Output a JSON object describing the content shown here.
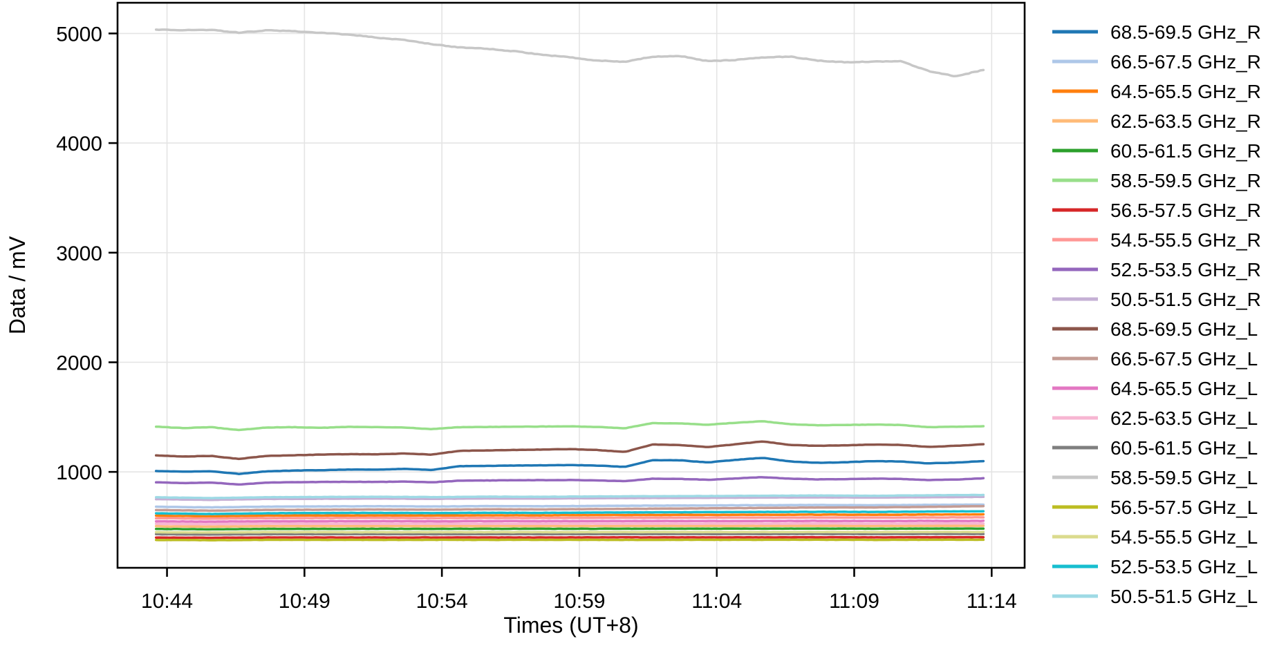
{
  "figure": {
    "background": "#ffffff",
    "grid_color": "#e4e4e4",
    "spine_color": "#000000",
    "text_color": "#000000"
  },
  "chart_data": {
    "type": "line",
    "title": "",
    "xlabel": "Times (UT+8)",
    "ylabel": "Data / mV",
    "grid": true,
    "legend_position": "right",
    "x_tick_labels": [
      "10:44",
      "10:49",
      "10:54",
      "10:59",
      "11:04",
      "11:09",
      "11:14"
    ],
    "x_tick_minutes": [
      0.4,
      5.4,
      10.4,
      15.4,
      20.4,
      25.4,
      30.4
    ],
    "xlim_minutes": [
      -1.4,
      31.6
    ],
    "y_ticks": [
      1000,
      2000,
      3000,
      4000,
      5000
    ],
    "ylim": [
      125,
      5280
    ],
    "data_minutes_range": [
      0,
      30.1
    ],
    "series": [
      {
        "label": "68.5-69.5 GHz_R",
        "color": "#1f77b4",
        "values": [
          1008,
          1002,
          1006,
          982,
          1005,
          1012,
          1016,
          1022,
          1020,
          1028,
          1018,
          1052,
          1055,
          1058,
          1060,
          1062,
          1058,
          1046,
          1107,
          1106,
          1086,
          1110,
          1128,
          1095,
          1083,
          1088,
          1098,
          1095,
          1078,
          1085,
          1098
        ]
      },
      {
        "label": "66.5-67.5 GHz_R",
        "color": "#aec7e8",
        "values": [
          682,
          676,
          683,
          685,
          687,
          684,
          688,
          687,
          690,
          692,
          694,
          696,
          698,
          696,
          699,
          702
        ]
      },
      {
        "label": "64.5-65.5 GHz_R",
        "color": "#ff7f0e",
        "values": [
          600,
          595,
          601,
          602,
          603,
          602,
          604,
          604,
          606,
          607,
          608,
          609,
          610,
          609,
          611,
          612
        ]
      },
      {
        "label": "62.5-63.5 GHz_R",
        "color": "#ffbb78",
        "values": [
          504,
          501,
          505,
          505,
          506,
          505,
          506,
          506,
          506,
          507,
          507,
          507,
          508,
          507,
          508,
          508
        ]
      },
      {
        "label": "60.5-61.5 GHz_R",
        "color": "#2ca02c",
        "values": [
          479,
          476,
          480,
          480,
          481,
          480,
          481,
          481,
          481,
          482,
          482,
          482,
          483,
          482,
          483,
          483
        ]
      },
      {
        "label": "58.5-59.5 GHz_R",
        "color": "#98df8a",
        "values": [
          1412,
          1400,
          1408,
          1382,
          1405,
          1408,
          1402,
          1412,
          1408,
          1405,
          1390,
          1408,
          1410,
          1412,
          1414,
          1416,
          1410,
          1398,
          1445,
          1442,
          1430,
          1448,
          1462,
          1435,
          1425,
          1428,
          1432,
          1428,
          1408,
          1412,
          1416
        ]
      },
      {
        "label": "56.5-57.5 GHz_R",
        "color": "#d62728",
        "values": [
          401,
          399,
          402,
          402,
          402,
          402,
          402,
          402,
          403,
          403,
          403,
          403,
          404,
          403,
          404,
          404
        ]
      },
      {
        "label": "54.5-55.5 GHz_R",
        "color": "#ff9896",
        "values": [
          577,
          573,
          578,
          579,
          580,
          578,
          580,
          580,
          581,
          582,
          583,
          583,
          584,
          583,
          584,
          585
        ]
      },
      {
        "label": "52.5-53.5 GHz_R",
        "color": "#9467bd",
        "values": [
          905,
          898,
          903,
          885,
          902,
          906,
          908,
          910,
          908,
          912,
          905,
          920,
          922,
          924,
          925,
          926,
          922,
          915,
          938,
          936,
          928,
          940,
          952,
          938,
          932,
          934,
          938,
          936,
          926,
          930,
          942
        ]
      },
      {
        "label": "50.5-51.5 GHz_R",
        "color": "#c5b0d5",
        "values": [
          752,
          745,
          753,
          755,
          757,
          754,
          758,
          757,
          760,
          762,
          764,
          766,
          768,
          766,
          769,
          772
        ]
      },
      {
        "label": "68.5-69.5 GHz_L",
        "color": "#8c564b",
        "values": [
          1150,
          1140,
          1146,
          1118,
          1146,
          1152,
          1158,
          1162,
          1160,
          1168,
          1158,
          1192,
          1196,
          1200,
          1204,
          1208,
          1200,
          1182,
          1250,
          1245,
          1226,
          1252,
          1278,
          1245,
          1238,
          1242,
          1250,
          1246,
          1228,
          1238,
          1252
        ]
      },
      {
        "label": "66.5-67.5 GHz_L",
        "color": "#c49c94",
        "values": [
          652,
          646,
          653,
          655,
          657,
          655,
          659,
          658,
          661,
          664,
          668,
          671,
          675,
          676,
          681,
          688
        ]
      },
      {
        "label": "64.5-65.5 GHz_L",
        "color": "#e377c2",
        "values": [
          549,
          546,
          550,
          550,
          551,
          550,
          551,
          551,
          551,
          552,
          552,
          552,
          553,
          552,
          553,
          553
        ]
      },
      {
        "label": "62.5-63.5 GHz_L",
        "color": "#f7b6d2",
        "values": [
          526,
          523,
          527,
          527,
          527,
          527,
          527,
          527,
          528,
          528,
          528,
          528,
          529,
          528,
          529,
          529
        ]
      },
      {
        "label": "60.5-61.5 GHz_L",
        "color": "#7f7f7f",
        "values": [
          431,
          429,
          432,
          432,
          432,
          432,
          432,
          432,
          433,
          433,
          433,
          433,
          434,
          433,
          434,
          434
        ]
      },
      {
        "label": "58.5-59.5 GHz_L",
        "color": "#c7c7c7",
        "values": [
          5035,
          5030,
          5032,
          5008,
          5028,
          5022,
          5005,
          4990,
          4962,
          4940,
          4902,
          4872,
          4860,
          4838,
          4805,
          4782,
          4752,
          4742,
          4788,
          4795,
          4748,
          4758,
          4782,
          4788,
          4752,
          4738,
          4742,
          4748,
          4658,
          4608,
          4668
        ]
      },
      {
        "label": "56.5-57.5 GHz_L",
        "color": "#bcbd22",
        "values": [
          379,
          377,
          380,
          380,
          380,
          380,
          380,
          380,
          380,
          380,
          380,
          381,
          381,
          380,
          381,
          381
        ]
      },
      {
        "label": "54.5-55.5 GHz_L",
        "color": "#dbdb8d",
        "values": [
          449,
          447,
          450,
          450,
          450,
          450,
          450,
          450,
          451,
          451,
          451,
          451,
          452,
          451,
          452,
          452
        ]
      },
      {
        "label": "52.5-53.5 GHz_L",
        "color": "#17becf",
        "values": [
          622,
          616,
          623,
          625,
          626,
          624,
          627,
          626,
          629,
          631,
          633,
          635,
          636,
          635,
          638,
          641
        ]
      },
      {
        "label": "50.5-51.5 GHz_L",
        "color": "#9edae5",
        "values": [
          768,
          761,
          769,
          771,
          773,
          770,
          774,
          773,
          776,
          778,
          780,
          782,
          784,
          782,
          786,
          790
        ]
      }
    ]
  }
}
